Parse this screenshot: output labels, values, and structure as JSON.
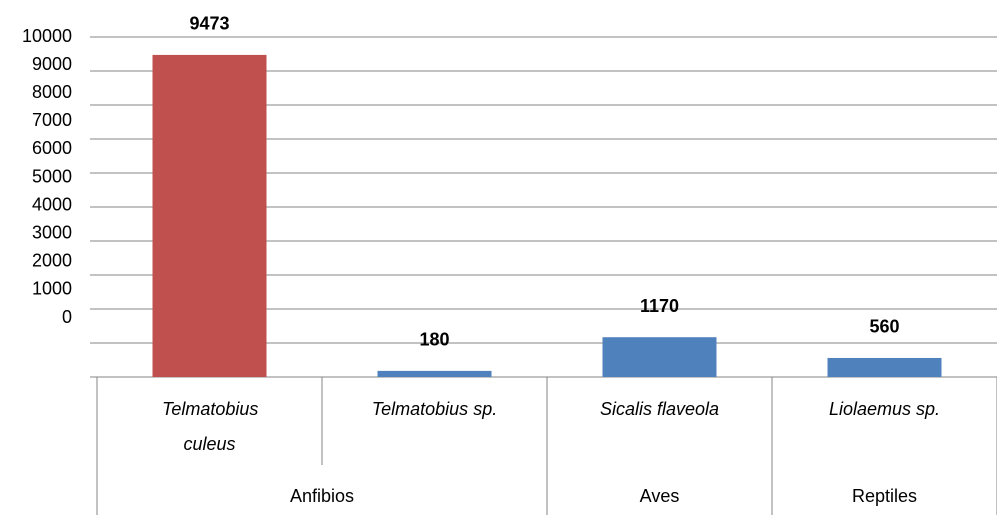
{
  "chart_data": {
    "type": "bar",
    "groups": [
      {
        "label": "Anfibios",
        "categories": [
          "Telmatobius culeus",
          "Telmatobius sp."
        ]
      },
      {
        "label": "Aves",
        "categories": [
          "Sicalis flaveola"
        ]
      },
      {
        "label": "Reptiles",
        "categories": [
          "Liolaemus sp."
        ]
      }
    ],
    "values": [
      9473,
      180,
      1170,
      560
    ],
    "colors": [
      "#c0504d",
      "#4f81bd",
      "#4f81bd",
      "#4f81bd"
    ],
    "ylim": [
      0,
      10000
    ],
    "yticks": [
      0,
      1000,
      2000,
      3000,
      4000,
      5000,
      6000,
      7000,
      8000,
      9000,
      10000
    ],
    "grid": true
  }
}
